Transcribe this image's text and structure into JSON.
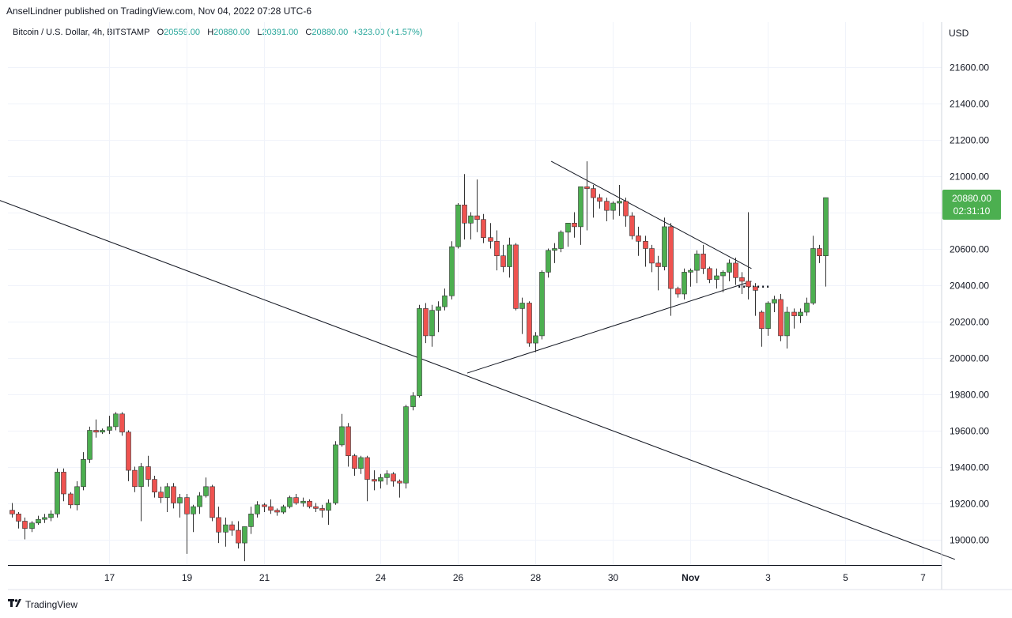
{
  "header": {
    "publisher": "AnselLindner published on TradingView.com, Nov 04, 2022 07:28 UTC-6"
  },
  "legend": {
    "symbol": "Bitcoin / U.S. Dollar, 4h, BITSTAMP",
    "open_label": "O",
    "open": "20559.00",
    "high_label": "H",
    "high": "20880.00",
    "low_label": "L",
    "low": "20391.00",
    "close_label": "C",
    "close": "20880.00",
    "change": "+323.00 (+1.57%)"
  },
  "price_axis": {
    "currency": "USD",
    "last_price": "20880.00",
    "countdown": "02:31:10"
  },
  "footer": {
    "brand": "TradingView"
  },
  "colors": {
    "up": "#26a69a",
    "up_fill": "#4caf50",
    "down": "#ef5350",
    "badge": "#4caf50",
    "wick": "#333333",
    "grid": "#f0f3fa",
    "trendline": "#131722"
  },
  "chart_data": {
    "type": "candlestick",
    "title": "Bitcoin / U.S. Dollar, 4h, BITSTAMP",
    "ylabel": "USD",
    "ylim": [
      18880,
      21860
    ],
    "y_ticks": [
      "19000.00",
      "19200.00",
      "19400.00",
      "19600.00",
      "19800.00",
      "20000.00",
      "20200.00",
      "20400.00",
      "20600.00",
      "20800.00",
      "21000.00",
      "21200.00",
      "21400.00",
      "21600.00"
    ],
    "x_ticks": [
      {
        "label": "17",
        "index": 15
      },
      {
        "label": "19",
        "index": 27
      },
      {
        "label": "21",
        "index": 39
      },
      {
        "label": "24",
        "index": 57
      },
      {
        "label": "26",
        "index": 69
      },
      {
        "label": "28",
        "index": 81
      },
      {
        "label": "30",
        "index": 93
      },
      {
        "label": "Nov",
        "index": 105
      },
      {
        "label": "3",
        "index": 117
      },
      {
        "label": "5",
        "index": 129
      },
      {
        "label": "7",
        "index": 141
      }
    ],
    "candles_ohlc": [
      [
        19160,
        19200,
        19120,
        19140
      ],
      [
        19140,
        19150,
        19060,
        19100
      ],
      [
        19100,
        19120,
        19000,
        19060
      ],
      [
        19060,
        19100,
        19040,
        19090
      ],
      [
        19090,
        19130,
        19080,
        19110
      ],
      [
        19110,
        19140,
        19090,
        19120
      ],
      [
        19120,
        19160,
        19100,
        19140
      ],
      [
        19140,
        19390,
        19120,
        19370
      ],
      [
        19370,
        19390,
        19210,
        19250
      ],
      [
        19250,
        19260,
        19170,
        19190
      ],
      [
        19190,
        19320,
        19160,
        19290
      ],
      [
        19290,
        19480,
        19270,
        19440
      ],
      [
        19440,
        19620,
        19420,
        19600
      ],
      [
        19600,
        19660,
        19560,
        19590
      ],
      [
        19590,
        19610,
        19580,
        19600
      ],
      [
        19600,
        19680,
        19580,
        19620
      ],
      [
        19620,
        19700,
        19600,
        19690
      ],
      [
        19690,
        19700,
        19570,
        19590
      ],
      [
        19590,
        19600,
        19320,
        19380
      ],
      [
        19380,
        19400,
        19260,
        19290
      ],
      [
        19290,
        19420,
        19100,
        19400
      ],
      [
        19400,
        19460,
        19290,
        19330
      ],
      [
        19330,
        19350,
        19230,
        19260
      ],
      [
        19260,
        19290,
        19200,
        19230
      ],
      [
        19230,
        19310,
        19150,
        19290
      ],
      [
        19290,
        19310,
        19170,
        19200
      ],
      [
        19200,
        19250,
        19120,
        19230
      ],
      [
        19230,
        19250,
        18920,
        19140
      ],
      [
        19140,
        19190,
        19040,
        19180
      ],
      [
        19180,
        19260,
        19140,
        19240
      ],
      [
        19240,
        19340,
        19230,
        19290
      ],
      [
        19290,
        19300,
        19100,
        19120
      ],
      [
        19120,
        19180,
        18980,
        19040
      ],
      [
        19040,
        19120,
        18960,
        19080
      ],
      [
        19080,
        19100,
        19020,
        19050
      ],
      [
        19050,
        19100,
        18950,
        18980
      ],
      [
        18980,
        19070,
        18880,
        19070
      ],
      [
        19070,
        19180,
        19030,
        19140
      ],
      [
        19140,
        19210,
        19120,
        19190
      ],
      [
        19190,
        19200,
        19150,
        19180
      ],
      [
        19180,
        19220,
        19140,
        19160
      ],
      [
        19160,
        19170,
        19130,
        19150
      ],
      [
        19150,
        19190,
        19140,
        19180
      ],
      [
        19180,
        19240,
        19170,
        19230
      ],
      [
        19230,
        19250,
        19190,
        19200
      ],
      [
        19200,
        19230,
        19180,
        19210
      ],
      [
        19210,
        19220,
        19170,
        19180
      ],
      [
        19180,
        19200,
        19150,
        19170
      ],
      [
        19170,
        19190,
        19120,
        19160
      ],
      [
        19160,
        19220,
        19080,
        19200
      ],
      [
        19200,
        19540,
        19190,
        19520
      ],
      [
        19520,
        19690,
        19510,
        19620
      ],
      [
        19620,
        19640,
        19400,
        19460
      ],
      [
        19460,
        19470,
        19350,
        19390
      ],
      [
        19390,
        19460,
        19360,
        19450
      ],
      [
        19450,
        19460,
        19210,
        19330
      ],
      [
        19330,
        19380,
        19270,
        19320
      ],
      [
        19320,
        19360,
        19280,
        19340
      ],
      [
        19340,
        19380,
        19300,
        19360
      ],
      [
        19360,
        19370,
        19290,
        19320
      ],
      [
        19320,
        19330,
        19230,
        19310
      ],
      [
        19310,
        19740,
        19280,
        19730
      ],
      [
        19730,
        19810,
        19710,
        19790
      ],
      [
        19790,
        20290,
        19780,
        20270
      ],
      [
        20270,
        20300,
        20080,
        20120
      ],
      [
        20120,
        20290,
        20060,
        20260
      ],
      [
        20260,
        20310,
        20140,
        20280
      ],
      [
        20280,
        20380,
        20260,
        20340
      ],
      [
        20340,
        20640,
        20320,
        20610
      ],
      [
        20610,
        20850,
        20600,
        20840
      ],
      [
        20840,
        21010,
        20650,
        20740
      ],
      [
        20740,
        20800,
        20650,
        20780
      ],
      [
        20780,
        20980,
        20690,
        20760
      ],
      [
        20760,
        20790,
        20630,
        20660
      ],
      [
        20660,
        20740,
        20600,
        20640
      ],
      [
        20640,
        20700,
        20480,
        20560
      ],
      [
        20560,
        20620,
        20470,
        20500
      ],
      [
        20500,
        20660,
        20440,
        20620
      ],
      [
        20620,
        20630,
        20260,
        20270
      ],
      [
        20270,
        20330,
        20130,
        20300
      ],
      [
        20300,
        20310,
        20060,
        20080
      ],
      [
        20080,
        20140,
        20030,
        20120
      ],
      [
        20120,
        20480,
        20100,
        20470
      ],
      [
        20470,
        20600,
        20440,
        20590
      ],
      [
        20590,
        20630,
        20520,
        20600
      ],
      [
        20600,
        20700,
        20580,
        20690
      ],
      [
        20690,
        20730,
        20610,
        20740
      ],
      [
        20740,
        20800,
        20660,
        20720
      ],
      [
        20720,
        20750,
        20620,
        20940
      ],
      [
        20940,
        21080,
        20700,
        20930
      ],
      [
        20930,
        20950,
        20770,
        20880
      ],
      [
        20880,
        20900,
        20820,
        20860
      ],
      [
        20860,
        20880,
        20750,
        20810
      ],
      [
        20810,
        20860,
        20760,
        20850
      ],
      [
        20850,
        20950,
        20780,
        20860
      ],
      [
        20860,
        20880,
        20720,
        20780
      ],
      [
        20780,
        20800,
        20650,
        20670
      ],
      [
        20670,
        20720,
        20560,
        20640
      ],
      [
        20640,
        20670,
        20500,
        20600
      ],
      [
        20600,
        20620,
        20470,
        20520
      ],
      [
        20520,
        20560,
        20370,
        20500
      ],
      [
        20500,
        20770,
        20480,
        20720
      ],
      [
        20720,
        20740,
        20230,
        20380
      ],
      [
        20380,
        20390,
        20330,
        20350
      ],
      [
        20350,
        20490,
        20320,
        20470
      ],
      [
        20470,
        20490,
        20390,
        20480
      ],
      [
        20480,
        20590,
        20410,
        20570
      ],
      [
        20570,
        20620,
        20460,
        20490
      ],
      [
        20490,
        20500,
        20410,
        20430
      ],
      [
        20430,
        20490,
        20380,
        20450
      ],
      [
        20450,
        20480,
        20360,
        20470
      ],
      [
        20470,
        20540,
        20420,
        20520
      ],
      [
        20520,
        20550,
        20400,
        20440
      ],
      [
        20440,
        20470,
        20350,
        20420
      ],
      [
        20420,
        20800,
        20320,
        20390
      ],
      [
        20390,
        20410,
        20230,
        20370
      ],
      [
        20250,
        20260,
        20060,
        20160
      ],
      [
        20160,
        20310,
        20120,
        20300
      ],
      [
        20300,
        20340,
        20250,
        20320
      ],
      [
        20320,
        20350,
        20090,
        20120
      ],
      [
        20120,
        20280,
        20050,
        20250
      ],
      [
        20250,
        20270,
        20160,
        20230
      ],
      [
        20230,
        20270,
        20190,
        20250
      ],
      [
        20250,
        20330,
        20230,
        20300
      ],
      [
        20300,
        20670,
        20290,
        20600
      ],
      [
        20600,
        20620,
        20520,
        20560
      ],
      [
        20560,
        20880,
        20391,
        20880
      ]
    ],
    "trendlines": [
      {
        "name": "long-downtrend",
        "x1": -6,
        "y1": 20920,
        "x2": 146,
        "y2": 18890
      },
      {
        "name": "triangle-upper",
        "x1": 83.5,
        "y1": 21080,
        "x2": 114.5,
        "y2": 20490
      },
      {
        "name": "triangle-lower",
        "x1": 70.5,
        "y1": 19915,
        "x2": 114.5,
        "y2": 20420
      },
      {
        "name": "support-dotted",
        "x1": 112.5,
        "y1": 20390,
        "x2": 117.5,
        "y2": 20390
      }
    ]
  }
}
